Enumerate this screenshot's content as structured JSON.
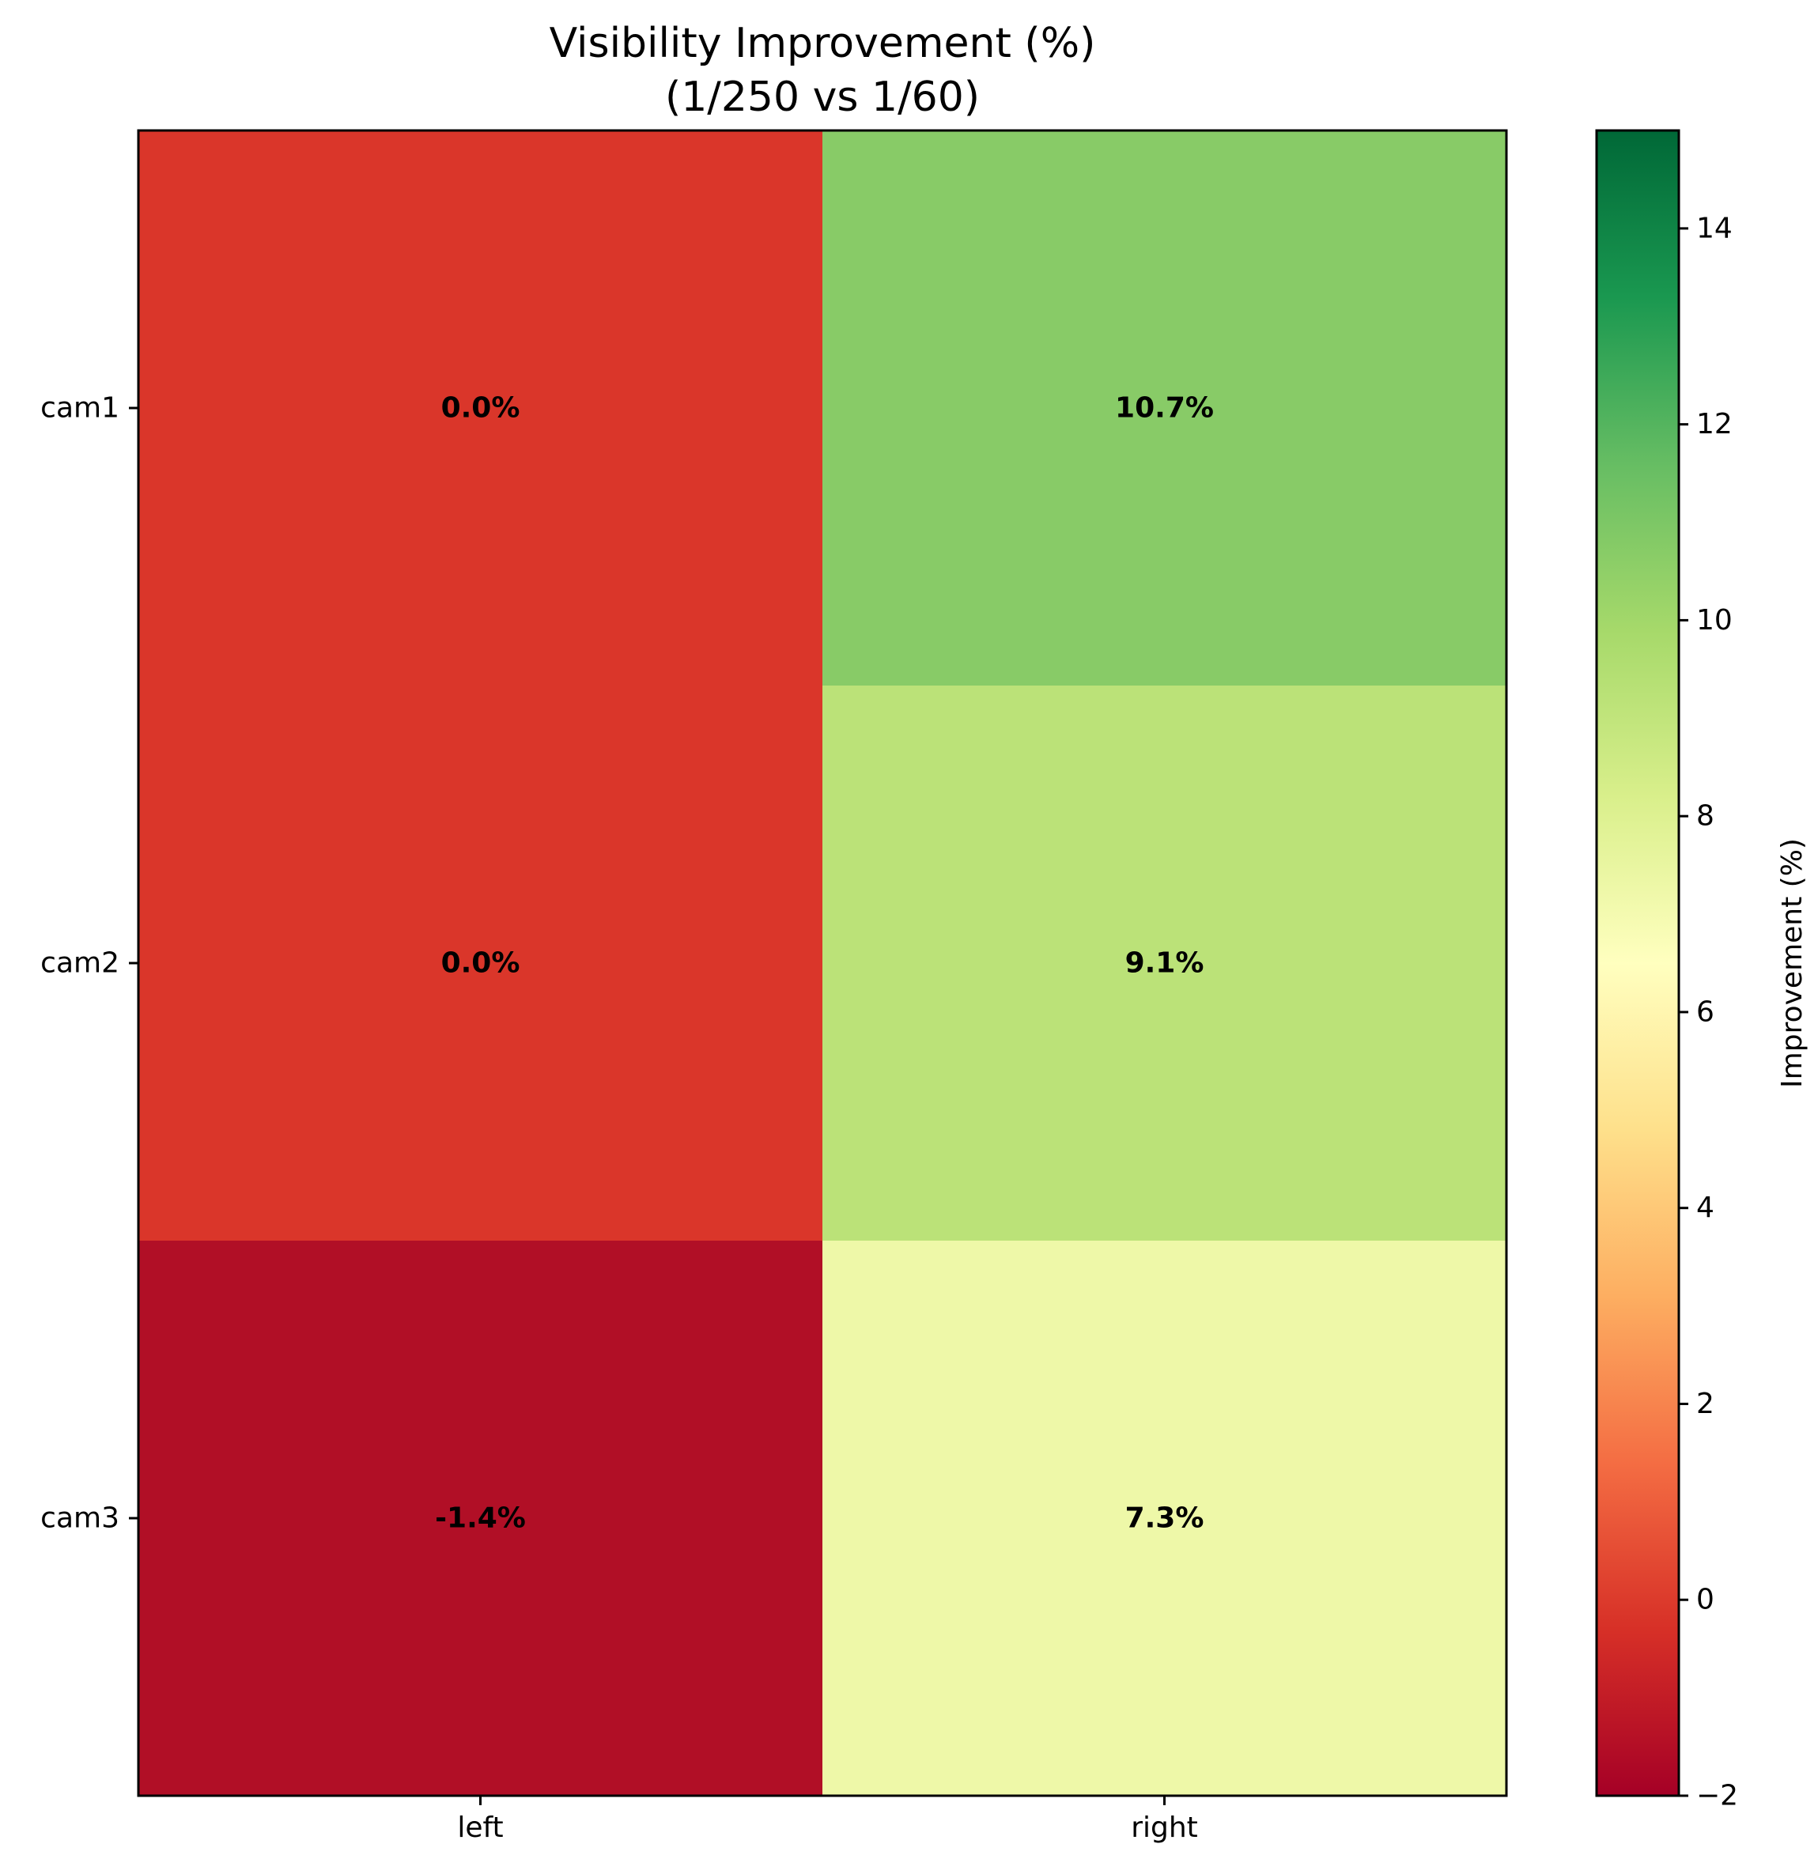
{
  "chart_data": {
    "type": "heatmap",
    "title": "Visibility Improvement (%)",
    "subtitle": "(1/250 vs 1/60)",
    "columns": [
      "left",
      "right"
    ],
    "rows": [
      "cam1",
      "cam2",
      "cam3"
    ],
    "values": [
      [
        0.0,
        10.7
      ],
      [
        0.0,
        9.1
      ],
      [
        -1.4,
        7.3
      ]
    ],
    "cell_labels": [
      [
        "0.0%",
        "10.7%"
      ],
      [
        "0.0%",
        "9.1%"
      ],
      [
        "-1.4%",
        "7.3%"
      ]
    ],
    "colormap": "RdYlGn",
    "value_range": [
      -2,
      15
    ],
    "colorbar": {
      "label": "Improvement (%)",
      "ticks": [
        14,
        12,
        10,
        8,
        6,
        4,
        2,
        0,
        -2
      ],
      "tick_labels": [
        "14",
        "12",
        "10",
        "8",
        "6",
        "4",
        "2",
        "0",
        "−2"
      ]
    },
    "colors": {
      "cells": [
        [
          "#da362a",
          "#88cb67"
        ],
        [
          "#da362a",
          "#bbe278"
        ],
        [
          "#b10f26",
          "#eef8a8"
        ]
      ],
      "colormap_stops": [
        "#a50026",
        "#d73027",
        "#f46d43",
        "#fdae61",
        "#fee08b",
        "#ffffbf",
        "#d9ef8b",
        "#a6d96a",
        "#66bd63",
        "#1a9850",
        "#006837"
      ]
    }
  }
}
